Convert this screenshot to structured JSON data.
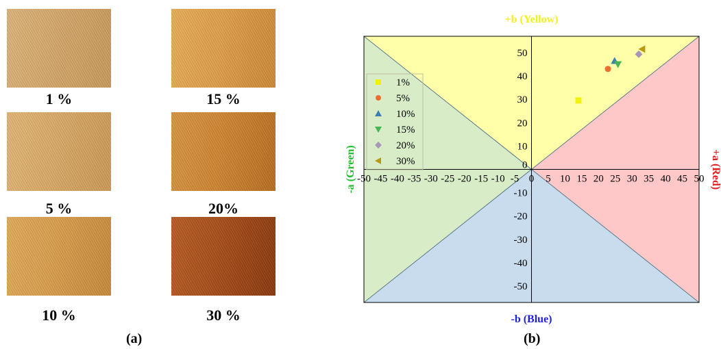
{
  "panel_a": {
    "label": "(a)",
    "samples": [
      {
        "label": "1 %",
        "colors": [
          "#d4a86c",
          "#c89a5c",
          "#dcb47a"
        ]
      },
      {
        "label": "15 %",
        "colors": [
          "#dfa04a",
          "#cd8a36",
          "#e8ad5a"
        ]
      },
      {
        "label": "5 %",
        "colors": [
          "#d9aa68",
          "#cb9a58",
          "#e2b676"
        ]
      },
      {
        "label": "20%",
        "colors": [
          "#cf8733",
          "#b86f22",
          "#d89545"
        ]
      },
      {
        "label": "10 %",
        "colors": [
          "#d89e4e",
          "#c68a3c",
          "#e2ab5c"
        ]
      },
      {
        "label": "30 %",
        "colors": [
          "#a84e1a",
          "#8a3a10",
          "#b85e26"
        ]
      }
    ]
  },
  "panel_b": {
    "label": "(b)"
  },
  "chart_data": {
    "type": "scatter",
    "xlabel_positive": "+a (Red)",
    "xlabel_negative": "-a (Green)",
    "ylabel_positive": "+b (Yellow)",
    "ylabel_negative": "-b (Blue)",
    "xlim": [
      -50,
      50
    ],
    "ylim": [
      -57,
      57
    ],
    "x_ticks": [
      -50,
      -45,
      -40,
      -35,
      -30,
      -25,
      -20,
      -15,
      -10,
      -5,
      0,
      5,
      10,
      15,
      20,
      25,
      30,
      35,
      40,
      45,
      50
    ],
    "y_ticks": [
      -50,
      -40,
      -30,
      -20,
      -10,
      0,
      10,
      20,
      30,
      40,
      50
    ],
    "legend_position": "left-upper",
    "region_colors": {
      "yellow": "#ffffaa",
      "red": "#ffc8c8",
      "green": "#d8ecc8",
      "blue": "#c8dcee"
    },
    "series": [
      {
        "name": "1%",
        "marker": "square",
        "color": "#f2f20f",
        "x": 14.0,
        "y": 29.5
      },
      {
        "name": "5%",
        "marker": "circle",
        "color": "#ee6e32",
        "x": 22.8,
        "y": 43.0
      },
      {
        "name": "10%",
        "marker": "triangle-up",
        "color": "#3c7fb4",
        "x": 24.8,
        "y": 46.5
      },
      {
        "name": "15%",
        "marker": "triangle-down",
        "color": "#48b455",
        "x": 25.8,
        "y": 45.0
      },
      {
        "name": "20%",
        "marker": "diamond",
        "color": "#a995b8",
        "x": 32.0,
        "y": 49.3
      },
      {
        "name": "30%",
        "marker": "triangle-left",
        "color": "#b99a14",
        "x": 33.0,
        "y": 51.5
      }
    ]
  }
}
